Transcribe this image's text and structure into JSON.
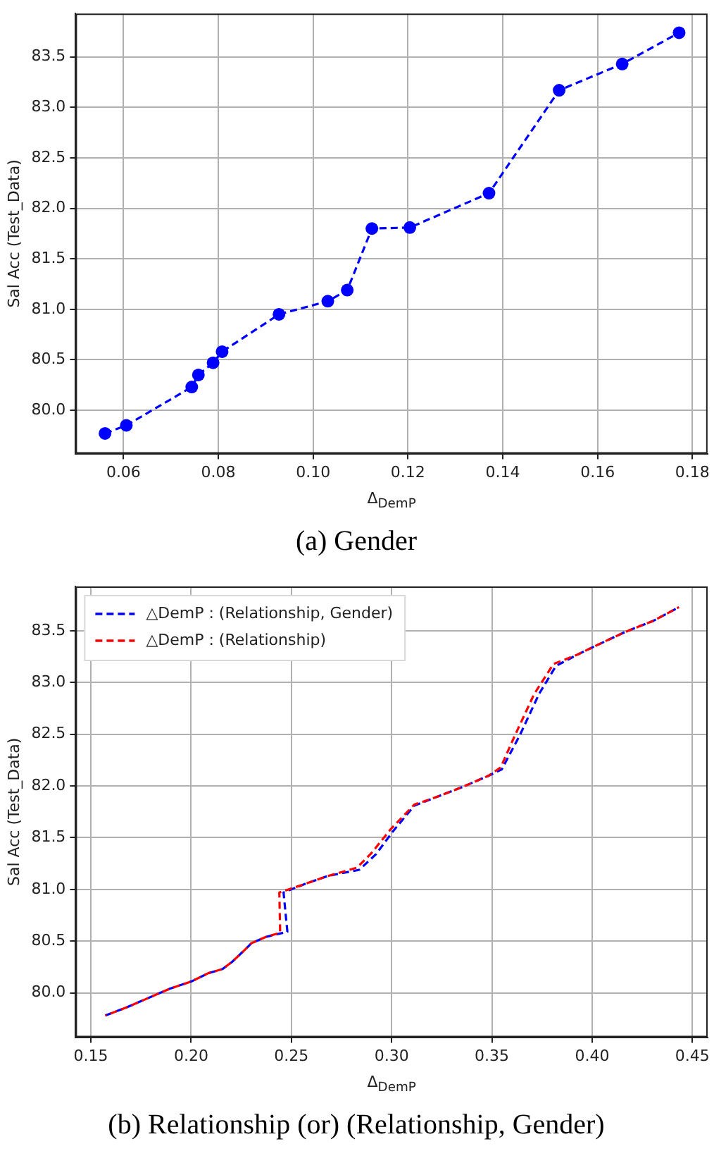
{
  "chart_data": [
    {
      "type": "line",
      "title": "(a) Gender",
      "xlabel": "Δ$_{DemP}$",
      "ylabel": "Sal Acc (Test_Data)",
      "xlim": [
        0.0499,
        0.1832
      ],
      "ylim": [
        79.57,
        83.93
      ],
      "xticks": [
        0.06,
        0.08,
        {
          "value": 0.1,
          "label": "0.10"
        },
        0.12,
        0.14,
        0.16,
        0.18
      ],
      "yticks": [
        {
          "value": 80,
          "label": "80.0"
        },
        80.5,
        {
          "value": 81,
          "label": "81.0"
        },
        81.5,
        {
          "value": 82,
          "label": "82.0"
        },
        82.5,
        {
          "value": 83,
          "label": "83.0"
        },
        83.5
      ],
      "grid": true,
      "marker": "circle",
      "line_style": "dashed",
      "series": [
        {
          "color": "#0000ff",
          "x": [
            0.0561,
            0.0606,
            0.0744,
            0.0758,
            0.0789,
            0.0808,
            0.0928,
            0.1031,
            0.1072,
            0.1124,
            0.1204,
            0.1371,
            0.1519,
            0.1652,
            0.1772
          ],
          "values": [
            79.77,
            79.85,
            80.23,
            80.35,
            80.47,
            80.58,
            80.95,
            81.08,
            81.19,
            81.8,
            81.81,
            82.15,
            83.17,
            83.43,
            83.74
          ]
        }
      ]
    },
    {
      "type": "line",
      "title": "(b) Relationship (or) (Relationship, Gender)",
      "xlabel": "Δ$_{DemP}$",
      "ylabel": "Sal Acc (Test_Data)",
      "xlim": [
        0.1424,
        0.4576
      ],
      "ylim": [
        79.57,
        83.93
      ],
      "xticks": [
        0.15,
        {
          "value": 0.2,
          "label": "0.20"
        },
        0.25,
        {
          "value": 0.3,
          "label": "0.30"
        },
        0.35,
        {
          "value": 0.4,
          "label": "0.40"
        },
        0.45
      ],
      "yticks": [
        {
          "value": 80,
          "label": "80.0"
        },
        80.5,
        {
          "value": 81,
          "label": "81.0"
        },
        81.5,
        {
          "value": 82,
          "label": "82.0"
        },
        82.5,
        {
          "value": 83,
          "label": "83.0"
        },
        83.5
      ],
      "grid": true,
      "marker": "none",
      "line_style": "dashed",
      "legend": "top left",
      "series": [
        {
          "name": "△DemP : (Relationship, Gender)",
          "color": "#0000ff",
          "x": [
            0.1572,
            0.168,
            0.1787,
            0.1894,
            0.2002,
            0.2086,
            0.2157,
            0.2205,
            0.2265,
            0.2301,
            0.2373,
            0.248,
            0.2461,
            0.2564,
            0.2683,
            0.2839,
            0.2922,
            0.3006,
            0.3113,
            0.3233,
            0.3353,
            0.3484,
            0.3549,
            0.3639,
            0.3735,
            0.3819,
            0.3926,
            0.4022,
            0.4165,
            0.4308,
            0.4433
          ],
          "values": [
            79.78,
            79.86,
            79.95,
            80.04,
            80.11,
            80.19,
            80.23,
            80.3,
            80.41,
            80.48,
            80.54,
            80.59,
            80.97,
            81.05,
            81.13,
            81.19,
            81.34,
            81.56,
            81.81,
            81.9,
            81.99,
            82.1,
            82.16,
            82.49,
            82.89,
            83.16,
            83.27,
            83.36,
            83.49,
            83.6,
            83.73
          ]
        },
        {
          "name": "△DemP : (Relationship)",
          "color": "#ff0000",
          "x": [
            0.1572,
            0.168,
            0.1787,
            0.1894,
            0.2002,
            0.2086,
            0.2157,
            0.2205,
            0.2265,
            0.2301,
            0.2373,
            0.2444,
            0.244,
            0.2564,
            0.2683,
            0.2827,
            0.2899,
            0.2994,
            0.3113,
            0.3233,
            0.3353,
            0.3484,
            0.3544,
            0.3615,
            0.3711,
            0.3807,
            0.3926,
            0.4022,
            0.4165,
            0.4308,
            0.4433
          ],
          "values": [
            79.78,
            79.86,
            79.95,
            80.04,
            80.11,
            80.19,
            80.23,
            80.3,
            80.41,
            80.48,
            80.54,
            80.58,
            80.97,
            81.05,
            81.13,
            81.21,
            81.35,
            81.58,
            81.82,
            81.9,
            81.99,
            82.1,
            82.18,
            82.49,
            82.89,
            83.18,
            83.27,
            83.36,
            83.49,
            83.6,
            83.73
          ]
        }
      ]
    }
  ]
}
